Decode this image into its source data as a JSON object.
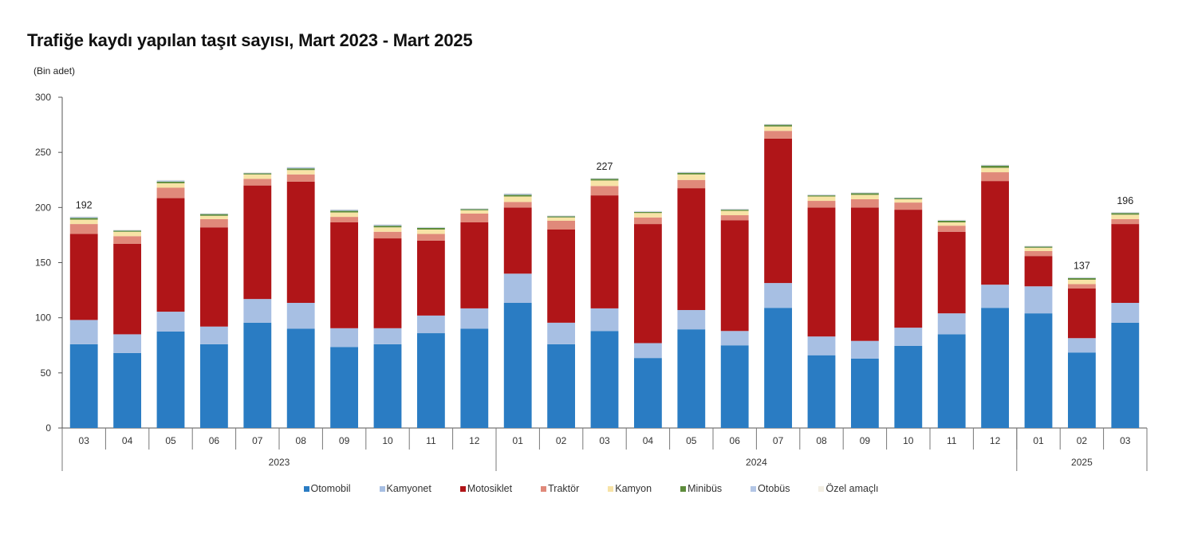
{
  "chart_data": {
    "type": "bar",
    "stacked": true,
    "title": "Trafiğe kaydı yapılan taşıt sayısı, Mart 2023 - Mart 2025",
    "ylabel": "(Bin adet)",
    "xlabel": "",
    "ylim": [
      0,
      300
    ],
    "yticks": [
      0,
      50,
      100,
      150,
      200,
      250,
      300
    ],
    "grid": false,
    "legend_position": "bottom",
    "categories": [
      "03",
      "04",
      "05",
      "06",
      "07",
      "08",
      "09",
      "10",
      "11",
      "12",
      "01",
      "02",
      "03",
      "04",
      "05",
      "06",
      "07",
      "08",
      "09",
      "10",
      "11",
      "12",
      "01",
      "02",
      "03"
    ],
    "year_groups": [
      {
        "label": "2023",
        "count": 10
      },
      {
        "label": "2024",
        "count": 12
      },
      {
        "label": "2025",
        "count": 3
      }
    ],
    "series": [
      {
        "name": "Otomobil",
        "color": "#2a7cc3",
        "values": [
          76,
          68,
          87.5,
          76,
          95.5,
          90,
          73.5,
          76,
          86,
          90,
          113.5,
          76,
          88,
          63.5,
          89.5,
          75,
          109,
          66,
          63,
          74.5,
          85,
          109,
          104,
          68.5,
          95.5
        ]
      },
      {
        "name": "Kamyonet",
        "color": "#a7bfe3",
        "values": [
          22,
          17,
          18,
          16,
          21.5,
          23.5,
          17,
          14.5,
          16,
          18.5,
          26.5,
          19.5,
          20.5,
          13.5,
          17.5,
          13,
          22.5,
          17,
          16,
          16.5,
          19,
          21,
          24.5,
          13,
          18
        ]
      },
      {
        "name": "Motosiklet",
        "color": "#b01518",
        "values": [
          78,
          82,
          103,
          90,
          103,
          110,
          96,
          81.5,
          68,
          78,
          60,
          84.5,
          102.5,
          108,
          110.5,
          100.5,
          131,
          117,
          121,
          107,
          74,
          94,
          27.5,
          45,
          71.5
        ]
      },
      {
        "name": "Traktör",
        "color": "#e0897a",
        "values": [
          9,
          7,
          9.5,
          7.5,
          6,
          6.5,
          5,
          6,
          6,
          8,
          5,
          8,
          8.5,
          6,
          7.5,
          4.5,
          7,
          6,
          7.5,
          6.5,
          5.5,
          8,
          4.5,
          4,
          4.5
        ]
      },
      {
        "name": "Kamyon",
        "color": "#f7e3a6",
        "values": [
          4,
          4,
          4,
          3,
          4,
          4,
          4,
          4,
          4,
          3,
          5,
          3,
          5,
          4,
          5,
          4,
          4,
          4,
          4,
          3,
          3,
          4,
          3,
          4,
          4
        ]
      },
      {
        "name": "Minibüs",
        "color": "#5e8c3c",
        "values": [
          1.5,
          1,
          1.5,
          1.5,
          1,
          1.5,
          1.5,
          1.5,
          1.5,
          1,
          1.5,
          1,
          1.5,
          1,
          1.5,
          1,
          1.5,
          1,
          1.5,
          1,
          1.5,
          2,
          1,
          1.5,
          1.5
        ]
      },
      {
        "name": "Otobüs",
        "color": "#b3c6e6",
        "values": [
          1,
          0.5,
          1,
          0.5,
          0.5,
          1,
          1,
          1,
          0.5,
          0.5,
          1,
          0.5,
          0.5,
          0.5,
          0.5,
          0.5,
          0.5,
          0.5,
          0.5,
          0.5,
          0.5,
          0.5,
          0.5,
          0.5,
          0.5
        ]
      },
      {
        "name": "Özel amaçlı",
        "color": "#f3efe4",
        "values": [
          0.5,
          0.5,
          0.5,
          0.5,
          0.5,
          0.5,
          0.5,
          0.5,
          0.5,
          0.5,
          0.5,
          0.5,
          0.5,
          0.5,
          0.5,
          0.5,
          0.5,
          0.5,
          0.5,
          0.5,
          0.5,
          0.5,
          0.5,
          0.5,
          0.5
        ]
      }
    ],
    "data_labels": [
      {
        "index": 0,
        "text": "192"
      },
      {
        "index": 12,
        "text": "227"
      },
      {
        "index": 23,
        "text": "137"
      },
      {
        "index": 24,
        "text": "196"
      }
    ]
  }
}
